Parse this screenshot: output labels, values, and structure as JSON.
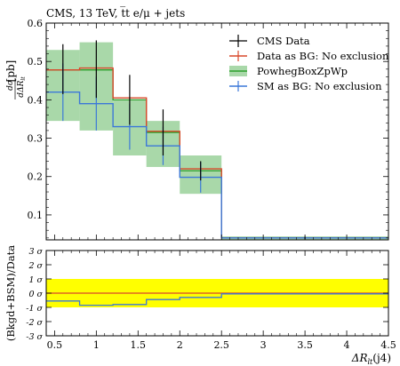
{
  "title": "CMS, 13 TeV, t̅t e/μ + jets",
  "ylabel_main": "[pb]",
  "ylabel_ratio": "(Bkgd+BSM)/Data",
  "xlabel": "ΔR",
  "xlabel_sub": "lt",
  "xlabel_suffix": "(j4)",
  "ylabel_frac_num": "dσ",
  "ylabel_frac_den": "dΔR",
  "ylabel_frac_sub": "lt",
  "legend": [
    "CMS Data",
    "Data as BG: No exclusion",
    "PowhegBoxZpWp",
    "SM as BG: No exclusion"
  ],
  "colors": {
    "data": "#000000",
    "data_bg": "#d9482b",
    "powheg_fill": "#a9d8a9",
    "powheg_line": "#2ca02c",
    "sm_bg": "#3c78d8",
    "band": "#ffff00"
  },
  "chart_data": {
    "type": "histogram",
    "bin_edges": [
      0.4,
      0.8,
      1.2,
      1.6,
      2.0,
      2.5,
      4.5
    ],
    "x_ticks": [
      "0.5",
      "1",
      "1.5",
      "2",
      "2.5",
      "3",
      "3.5",
      "4",
      "4.5"
    ],
    "x_tick_values": [
      0.5,
      1.0,
      1.5,
      2.0,
      2.5,
      3.0,
      3.5,
      4.0,
      4.5
    ],
    "main": {
      "ylim": [
        0.035,
        0.6
      ],
      "y_ticks": [
        "0.1",
        "0.2",
        "0.3",
        "0.4",
        "0.5",
        "0.6"
      ],
      "y_tick_values": [
        0.1,
        0.2,
        0.3,
        0.4,
        0.5,
        0.6
      ],
      "series": [
        {
          "name": "CMS Data",
          "type": "points",
          "x": [
            0.6,
            1.0,
            1.4,
            1.8,
            2.25,
            3.5
          ],
          "y": [
            0.48,
            0.48,
            0.4,
            0.315,
            0.215,
            0.04
          ],
          "yerr": [
            0.065,
            0.075,
            0.065,
            0.06,
            0.025,
            0.003
          ]
        },
        {
          "name": "Data as BG: No exclusion",
          "type": "step",
          "values": [
            0.478,
            0.483,
            0.405,
            0.318,
            0.22,
            0.04
          ]
        },
        {
          "name": "PowhegBoxZpWp",
          "type": "band",
          "center": [
            0.478,
            0.478,
            0.4,
            0.315,
            0.215,
            0.04
          ],
          "low": [
            0.345,
            0.32,
            0.255,
            0.225,
            0.155,
            0.036
          ],
          "high": [
            0.53,
            0.55,
            0.4,
            0.345,
            0.255,
            0.044
          ]
        },
        {
          "name": "SM as BG: No exclusion",
          "type": "step_err",
          "values": [
            0.42,
            0.39,
            0.33,
            0.28,
            0.198,
            0.04
          ],
          "yerr": [
            0.075,
            0.07,
            0.06,
            0.05,
            0.04,
            0.003
          ]
        }
      ]
    },
    "ratio": {
      "ylim": [
        -3,
        3
      ],
      "y_ticks": [
        "-3 σ",
        "-2 σ",
        "-1 σ",
        "0 σ",
        "1 σ",
        "2 σ",
        "3 σ"
      ],
      "y_tick_values": [
        -3,
        -2,
        -1,
        0,
        1,
        2,
        3
      ],
      "band": [
        -1,
        1
      ],
      "series": [
        {
          "name": "Data as BG: No exclusion",
          "values": [
            0,
            0,
            0,
            0,
            0,
            0
          ]
        },
        {
          "name": "SM as BG: No exclusion",
          "values": [
            -0.55,
            -0.85,
            -0.8,
            -0.45,
            -0.3,
            -0.05
          ]
        }
      ]
    }
  }
}
